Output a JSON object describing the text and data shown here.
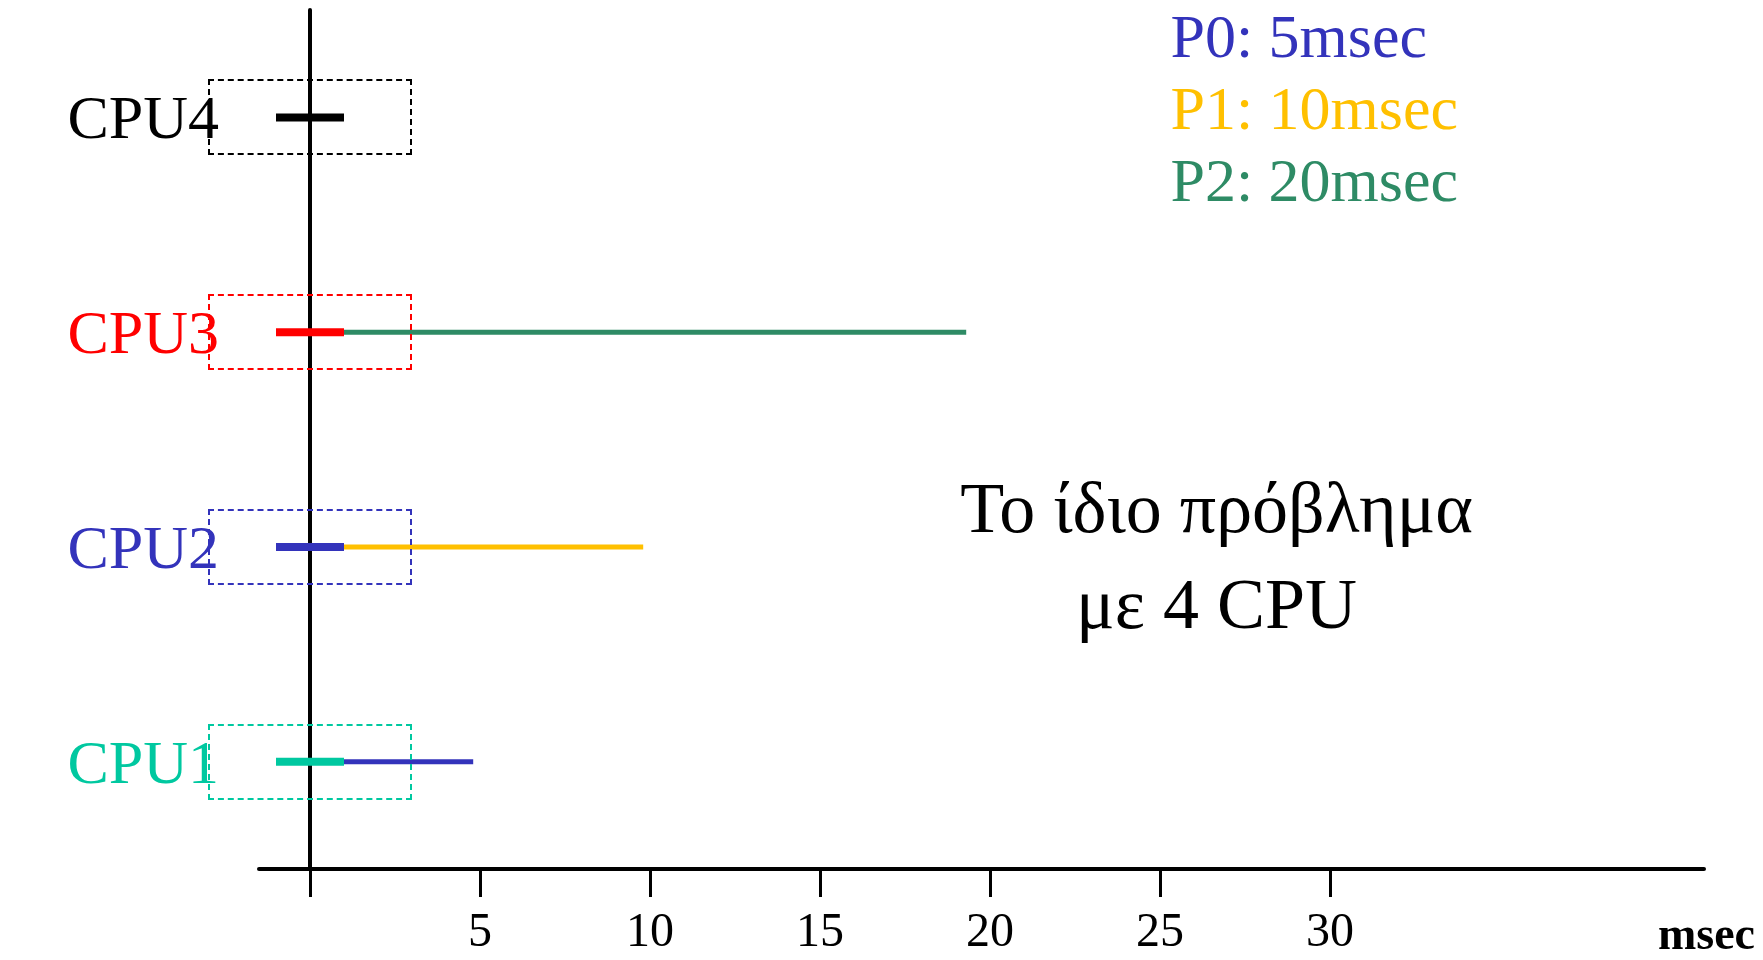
{
  "chart_data": {
    "type": "bar",
    "orientation": "horizontal",
    "categories": [
      "CPU4",
      "CPU3",
      "CPU2",
      "CPU1"
    ],
    "series": [
      {
        "values": [
          2,
          2,
          2,
          2
        ],
        "base": [
          -1,
          -1,
          -1,
          -1
        ],
        "colors": [
          "#000000",
          "#ff0000",
          "#3333bb",
          "#00c8a0"
        ]
      },
      {
        "name": "P0: 5msec",
        "color": "#3333bb",
        "values": [
          null,
          null,
          null,
          4.8
        ],
        "base": [
          null,
          null,
          null,
          0
        ]
      },
      {
        "name": "P1: 10msec",
        "color": "#ffc000",
        "values": [
          null,
          null,
          9.8,
          null
        ],
        "base": [
          null,
          null,
          0,
          null
        ]
      },
      {
        "name": "P2: 20msec",
        "color": "#2e8b65",
        "values": [
          null,
          19.3,
          null,
          null
        ],
        "base": [
          null,
          0,
          null,
          null
        ]
      }
    ],
    "xlim": [
      -1.5,
      41
    ],
    "xticks": [
      {
        "value": 0,
        "label": null
      },
      5,
      10,
      15,
      20,
      25,
      30
    ],
    "xlabel": "msec",
    "legend": "top right",
    "grid": false,
    "annotations": [
      "Το ίδιο πρόβλημα\nμε 4 CPU"
    ]
  }
}
